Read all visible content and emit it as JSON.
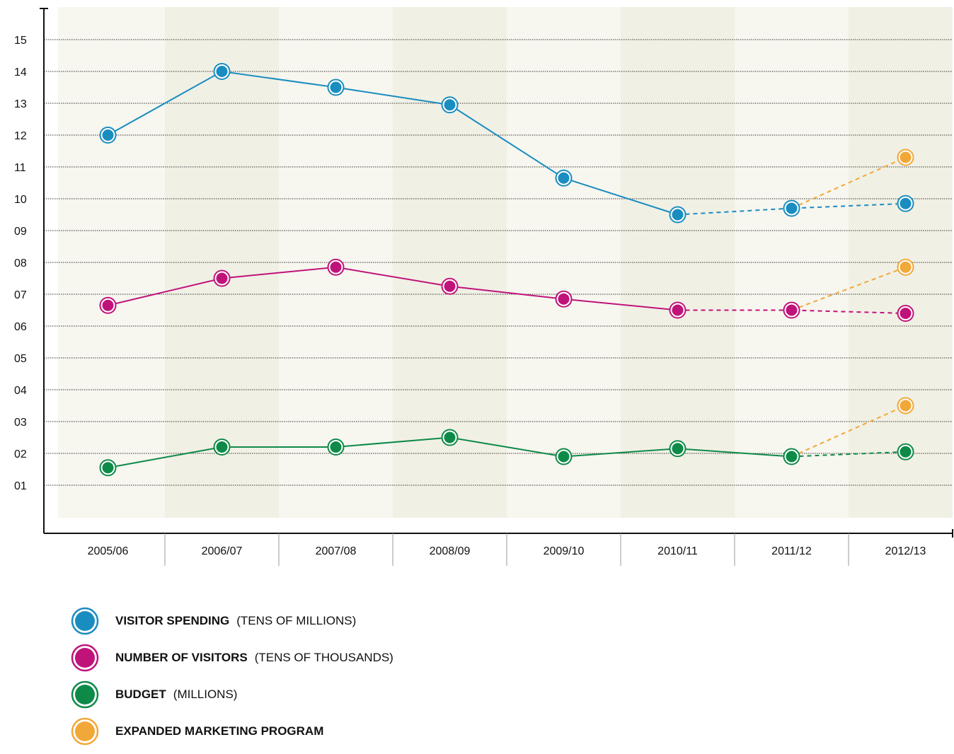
{
  "chart_data": {
    "type": "line",
    "categories": [
      "2005/06",
      "2006/07",
      "2007/08",
      "2008/09",
      "2009/10",
      "2010/11",
      "2011/12",
      "2012/13"
    ],
    "y_ticks": [
      "01",
      "02",
      "03",
      "04",
      "05",
      "06",
      "07",
      "08",
      "09",
      "10",
      "11",
      "12",
      "13",
      "14",
      "15"
    ],
    "ylim": [
      0,
      16
    ],
    "grid": "horizontal dotted",
    "legend_position": "bottom-left",
    "series": [
      {
        "name": "VISITOR SPENDING",
        "unit": "(TENS OF MILLIONS)",
        "color": "#1a8dc0",
        "values": [
          12.0,
          14.0,
          13.5,
          12.95,
          10.65,
          9.5,
          9.7,
          9.85
        ],
        "projected_from_index": 5
      },
      {
        "name": "NUMBER OF VISITORS",
        "unit": "(TENS OF THOUSANDS)",
        "color": "#c0137a",
        "values": [
          6.65,
          7.5,
          7.85,
          7.25,
          6.85,
          6.5,
          6.5,
          6.4
        ],
        "projected_from_index": 5
      },
      {
        "name": "BUDGET",
        "unit": "(MILLIONS)",
        "color": "#0e8a48",
        "values": [
          1.55,
          2.2,
          2.2,
          2.5,
          1.9,
          2.15,
          1.9,
          2.05
        ],
        "projected_from_index": 6
      }
    ],
    "expanded_program": {
      "name": "EXPANDED MARKETING PROGRAM",
      "color": "#f2a838",
      "values_2012_13": [
        11.3,
        7.85,
        3.5
      ]
    }
  }
}
